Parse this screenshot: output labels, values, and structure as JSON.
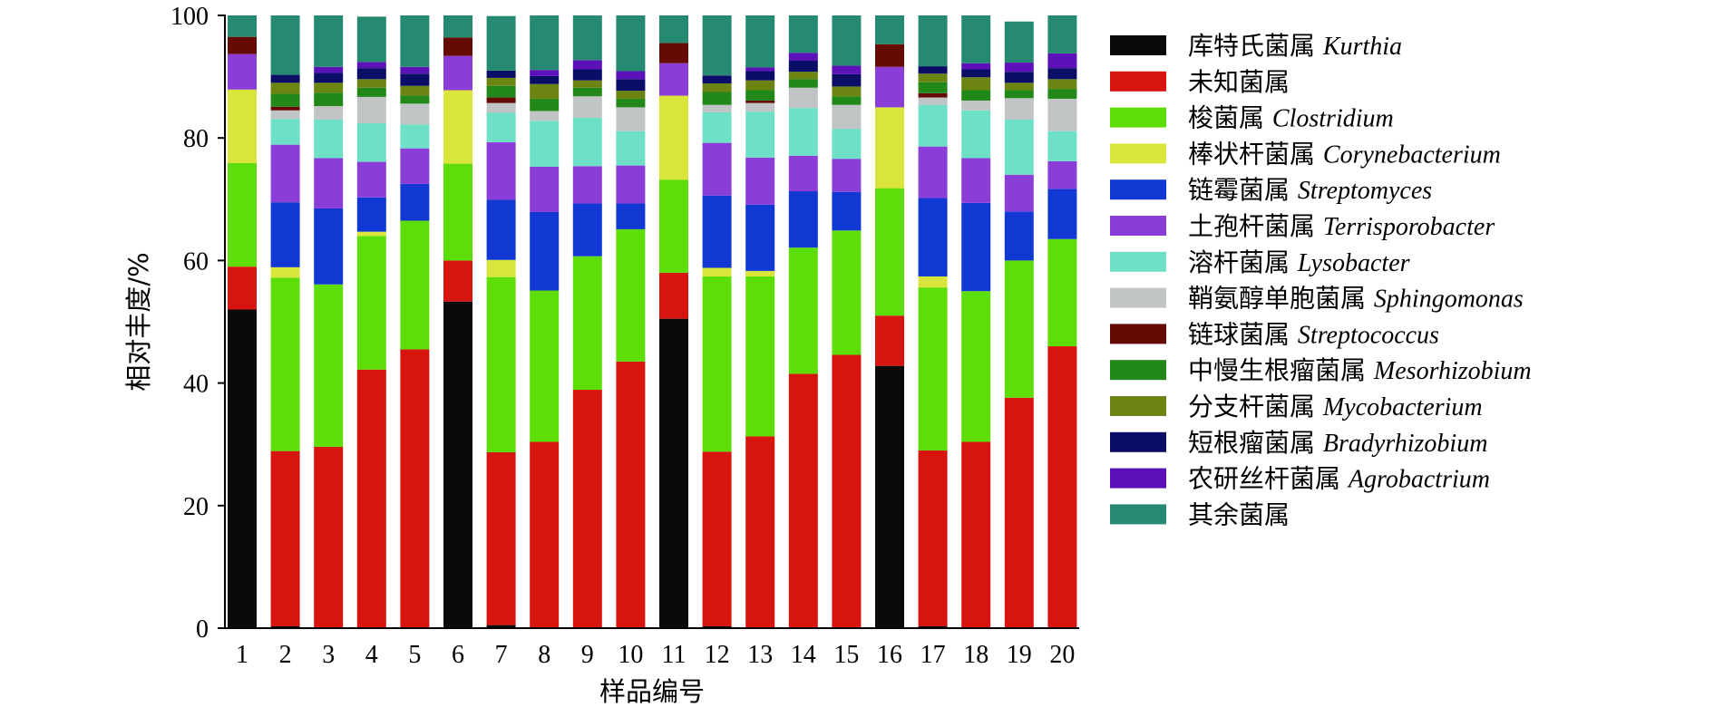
{
  "chart_data": {
    "type": "bar",
    "stacked": true,
    "xlabel": "样品编号",
    "ylabel": "相对丰度/%",
    "ylim": [
      0,
      100
    ],
    "yticks": [
      0,
      20,
      40,
      60,
      80,
      100
    ],
    "legend_position": "right",
    "categories": [
      "1",
      "2",
      "3",
      "4",
      "5",
      "6",
      "7",
      "8",
      "9",
      "10",
      "11",
      "12",
      "13",
      "14",
      "15",
      "16",
      "17",
      "18",
      "19",
      "20"
    ],
    "series": [
      {
        "name_cn": "库特氏菌属",
        "name_latin": "Kurthia",
        "color": "#0a0a0a",
        "values": [
          52,
          0.3,
          0,
          0,
          0,
          53.3,
          0.5,
          0,
          0,
          0,
          50.5,
          0.3,
          0,
          0,
          0,
          42.8,
          0.3,
          0,
          0,
          0
        ]
      },
      {
        "name_cn": "未知菌属",
        "name_latin": "",
        "color": "#d7140e",
        "values": [
          7,
          28.6,
          29.6,
          42.2,
          45.5,
          6.7,
          28.2,
          30.4,
          38.9,
          43.5,
          7.5,
          28.5,
          31.3,
          41.5,
          44.6,
          8.2,
          28.7,
          30.4,
          37.6,
          46
        ]
      },
      {
        "name_cn": "梭菌属",
        "name_latin": "Clostridium",
        "color": "#5ede08",
        "values": [
          16.9,
          28.3,
          26.5,
          21.8,
          21,
          15.8,
          28.6,
          24.7,
          21.8,
          21.6,
          15.2,
          28.6,
          26.1,
          20.6,
          20.3,
          20.8,
          26.6,
          24.6,
          22.4,
          17.5
        ]
      },
      {
        "name_cn": "棒状杆菌属",
        "name_latin": "Corynebacterium",
        "color": "#d9e53a",
        "values": [
          12,
          1.7,
          0,
          0.7,
          0,
          12,
          2.8,
          0,
          0,
          0,
          13.7,
          1.4,
          0.9,
          0,
          0,
          13.2,
          1.8,
          0,
          0,
          0
        ]
      },
      {
        "name_cn": "链霉菌属",
        "name_latin": "Streptomyces",
        "color": "#1238d4",
        "values": [
          0,
          10.6,
          12.4,
          5.6,
          6,
          0,
          9.8,
          12.8,
          8.6,
          4.2,
          0,
          11.8,
          10.8,
          9.2,
          6.3,
          0,
          12.8,
          14.4,
          8,
          8.2
        ]
      },
      {
        "name_cn": "土孢杆菌属",
        "name_latin": "Terrisporobacter",
        "color": "#8b3dd8",
        "values": [
          5.8,
          9.4,
          8.2,
          5.8,
          5.8,
          5.6,
          9.4,
          7.4,
          6.1,
          6.2,
          5.3,
          8.6,
          7.7,
          5.8,
          5.4,
          6.6,
          8.4,
          7.3,
          6,
          4.5
        ]
      },
      {
        "name_cn": "溶杆菌属",
        "name_latin": "Lysobacter",
        "color": "#6fe0c8",
        "values": [
          0,
          4.2,
          6.3,
          6.3,
          3.9,
          0,
          4.8,
          7.5,
          7.9,
          5.6,
          0,
          5,
          7.5,
          7.8,
          4.9,
          0,
          6.8,
          7.8,
          9,
          4.9
        ]
      },
      {
        "name_cn": "鞘氨醇单胞菌属",
        "name_latin": "Sphingomonas",
        "color": "#c0c4c4",
        "values": [
          0,
          1.4,
          2.2,
          4.3,
          3.4,
          0,
          1.6,
          1.6,
          3.5,
          3.9,
          0,
          1.2,
          1.4,
          3.3,
          3.9,
          0,
          1.2,
          1.6,
          3.5,
          5.3
        ]
      },
      {
        "name_cn": "链球菌属",
        "name_latin": "Streptococcus",
        "color": "#660a06",
        "values": [
          2.8,
          0.6,
          0,
          0,
          0,
          3,
          0.9,
          0,
          0,
          0,
          3.3,
          0,
          0.4,
          0,
          0,
          3.7,
          0.7,
          0,
          0,
          0
        ]
      },
      {
        "name_cn": "中慢生根瘤菌属",
        "name_latin": "Mesorhizobium",
        "color": "#22881a",
        "values": [
          0,
          2.1,
          2.2,
          1.5,
          1.3,
          0,
          1.9,
          2,
          1.4,
          1.4,
          0,
          2.1,
          1.7,
          1.4,
          1.4,
          0,
          1.8,
          1.7,
          1.3,
          1.6
        ]
      },
      {
        "name_cn": "分支杆菌属",
        "name_latin": "Mycobacterium",
        "color": "#6b8412",
        "values": [
          0,
          1.8,
          1.6,
          1.4,
          1.6,
          0,
          1.3,
          2.4,
          1.2,
          1.3,
          0,
          1.4,
          1.6,
          1.2,
          1.6,
          0,
          1.4,
          2.1,
          1.2,
          1.6
        ]
      },
      {
        "name_cn": "短根瘤菌属",
        "name_latin": "Bradyrhizobium",
        "color": "#0a0e66",
        "values": [
          0,
          1.3,
          1.6,
          1.8,
          2,
          0,
          1.2,
          1.3,
          1.8,
          1.9,
          0,
          1.3,
          1.5,
          1.8,
          2,
          0,
          1.2,
          1.3,
          1.8,
          1.8
        ]
      },
      {
        "name_cn": "农研丝杆菌属",
        "name_latin": "Agrobactrium",
        "color": "#5c12b8",
        "values": [
          0,
          0,
          1,
          1,
          1.1,
          0,
          0,
          1,
          1.5,
          1.3,
          0,
          0,
          0.6,
          1.3,
          1.4,
          0,
          0,
          1,
          1.5,
          2.4
        ]
      },
      {
        "name_cn": "其余菌属",
        "name_latin": "",
        "color": "#268a72",
        "values": [
          3.5,
          9.7,
          8.4,
          7.4,
          8.4,
          3.6,
          8.9,
          8.9,
          7.3,
          9.1,
          4.5,
          9.8,
          8.5,
          6.1,
          8.2,
          4.7,
          8.3,
          7.8,
          6.7,
          6.2
        ]
      }
    ]
  }
}
